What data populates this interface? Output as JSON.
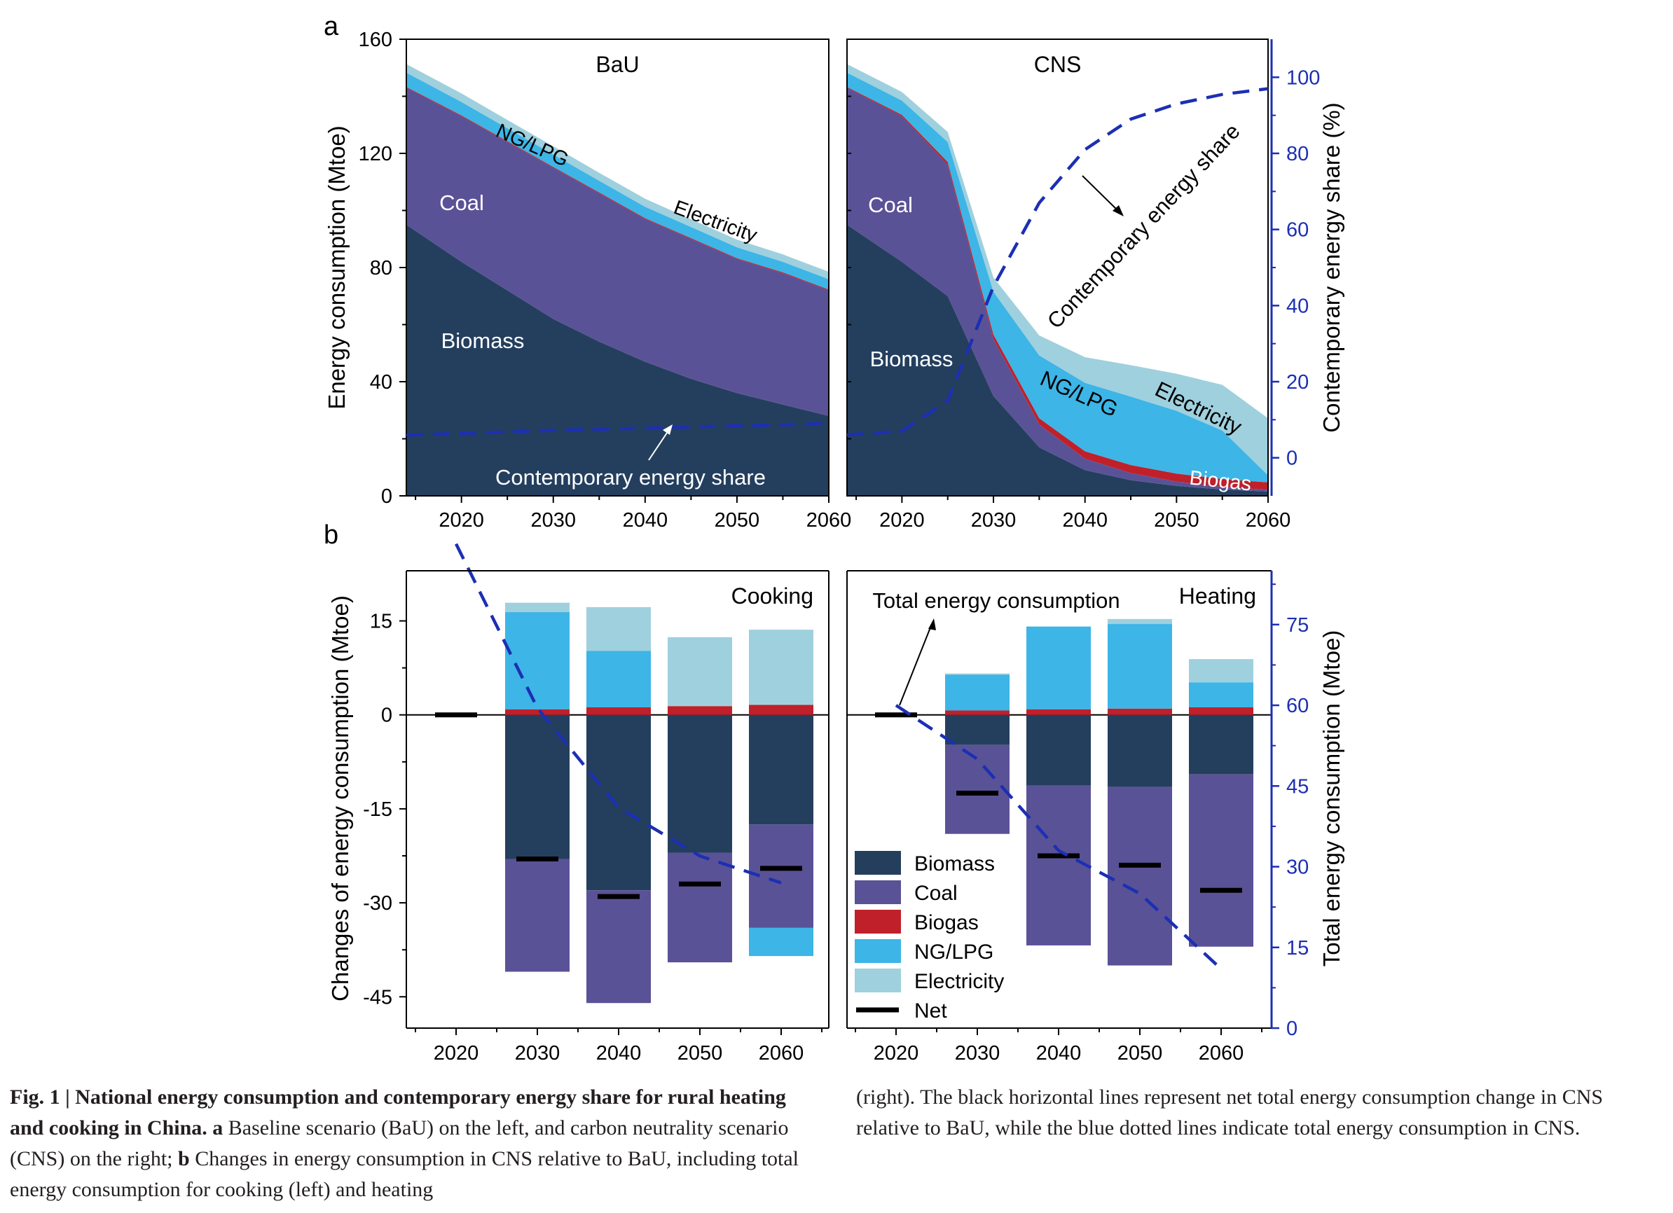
{
  "panel_labels": {
    "a": "a",
    "b": "b"
  },
  "chart_data": [
    {
      "type": "area",
      "title": "BaU",
      "ylabel": "Energy consumption (Mtoe)",
      "ylim": [
        0,
        160
      ],
      "yticks": [
        "0",
        "40",
        "80",
        "120",
        "160"
      ],
      "xlim": [
        2014,
        2060
      ],
      "xticks": [
        "2020",
        "2030",
        "2040",
        "2050",
        "2060"
      ],
      "x": [
        2014,
        2020,
        2025,
        2030,
        2035,
        2040,
        2045,
        2050,
        2055,
        2060
      ],
      "series": [
        {
          "name": "Biomass",
          "color": "#243f5e",
          "values": [
            95,
            82,
            72,
            62,
            54,
            47,
            41,
            36,
            32,
            28
          ]
        },
        {
          "name": "Coal",
          "color": "#5a5296",
          "values": [
            48,
            51,
            52,
            53,
            52,
            50,
            49,
            47,
            46,
            44
          ]
        },
        {
          "name": "Biogas",
          "color": "#c0202a",
          "values": [
            0.3,
            0.3,
            0.3,
            0.3,
            0.3,
            0.3,
            0.3,
            0.3,
            0.3,
            0.3
          ]
        },
        {
          "name": "NG/LPG",
          "color": "#3db5e6",
          "values": [
            5,
            4.7,
            4.5,
            4.3,
            4.1,
            4,
            3.9,
            3.8,
            3.7,
            3.6
          ]
        },
        {
          "name": "Electricity",
          "color": "#9fd0de",
          "values": [
            3,
            3,
            2.9,
            2.9,
            2.8,
            2.8,
            2.7,
            2.7,
            2.6,
            2.6
          ]
        }
      ],
      "area_labels": [
        "Coal",
        "Biomass",
        "NG/LPG",
        "Electricity"
      ],
      "share_series": {
        "name": "Contemporary energy share",
        "unit": "%",
        "values": [
          6,
          6.4,
          6.8,
          7.2,
          7.5,
          7.8,
          8.1,
          8.4,
          8.7,
          9
        ]
      },
      "annotation": "Contemporary energy share"
    },
    {
      "type": "area",
      "title": "CNS",
      "y2label": "Contemporary energy share (%)",
      "ylim": [
        0,
        160
      ],
      "y2lim": [
        -10,
        110
      ],
      "y2ticks": [
        "0",
        "20",
        "40",
        "60",
        "80",
        "100"
      ],
      "xlim": [
        2014,
        2060
      ],
      "xticks": [
        "2020",
        "2030",
        "2040",
        "2050",
        "2060"
      ],
      "x": [
        2014,
        2020,
        2025,
        2030,
        2035,
        2040,
        2045,
        2050,
        2055,
        2060
      ],
      "series": [
        {
          "name": "Biomass",
          "color": "#243f5e",
          "values": [
            95,
            82,
            70,
            35,
            17,
            9,
            5.5,
            3.5,
            2.2,
            1.5
          ]
        },
        {
          "name": "Coal",
          "color": "#5a5296",
          "values": [
            48,
            51,
            46,
            20,
            8,
            4,
            2.5,
            1.5,
            1,
            0.6
          ]
        },
        {
          "name": "Biogas",
          "color": "#c0202a",
          "values": [
            0.3,
            0.5,
            1,
            1.5,
            2.2,
            2.6,
            2.8,
            2.8,
            2.7,
            2.6
          ]
        },
        {
          "name": "NG/LPG",
          "color": "#3db5e6",
          "values": [
            5,
            5,
            7,
            15,
            22,
            24,
            24,
            22,
            17,
            2.5
          ]
        },
        {
          "name": "Electricity",
          "color": "#9fd0de",
          "values": [
            3,
            3,
            3.5,
            5,
            7,
            9,
            11,
            13,
            16,
            20
          ]
        }
      ],
      "area_labels": [
        "Coal",
        "Biomass",
        "NG/LPG",
        "Electricity",
        "Biogas"
      ],
      "share_series": {
        "name": "Contemporary energy share",
        "unit": "%",
        "values": [
          6,
          7,
          15,
          45,
          67,
          81,
          89,
          93,
          95.5,
          97
        ]
      },
      "annotation": "Contemporary energy share"
    },
    {
      "type": "bar",
      "title": "Cooking",
      "ylabel": "Changes of energy consumption (Mtoe)",
      "ylim": [
        -50,
        23
      ],
      "yticks": [
        "15",
        "0",
        "-15",
        "-30",
        "-45"
      ],
      "categories": [
        "2020",
        "2030",
        "2040",
        "2050",
        "2060"
      ],
      "series": [
        {
          "name": "Biomass",
          "color": "#243f5e",
          "values": [
            0,
            -23,
            -28,
            -22,
            -17.5
          ]
        },
        {
          "name": "Coal",
          "color": "#5a5296",
          "values": [
            0,
            -18,
            -18,
            -17.5,
            -16.5
          ]
        },
        {
          "name": "Biogas",
          "color": "#c0202a",
          "values": [
            0,
            0.9,
            1.2,
            1.4,
            1.6
          ]
        },
        {
          "name": "NG/LPG",
          "color": "#3db5e6",
          "values": [
            0,
            15.5,
            9,
            0,
            -4.5
          ]
        },
        {
          "name": "Electricity",
          "color": "#9fd0de",
          "values": [
            0,
            1.5,
            7,
            11,
            12
          ]
        }
      ],
      "net": [
        0,
        -23,
        -29,
        -27,
        -24.5
      ],
      "total_energy_consumption": [
        90,
        59.5,
        41,
        32,
        27
      ]
    },
    {
      "type": "bar",
      "title": "Heating",
      "y2label": "Total energy consumption (Mtoe)",
      "ylim": [
        -50,
        23
      ],
      "y2lim": [
        0,
        85
      ],
      "y2ticks": [
        "0",
        "15",
        "30",
        "45",
        "60",
        "75"
      ],
      "categories": [
        "2020",
        "2030",
        "2040",
        "2050",
        "2060"
      ],
      "series": [
        {
          "name": "Biomass",
          "color": "#243f5e",
          "values": [
            0,
            -4.8,
            -11.3,
            -11.5,
            -9.5
          ]
        },
        {
          "name": "Coal",
          "color": "#5a5296",
          "values": [
            0,
            -14.2,
            -25.5,
            -28.5,
            -27.5
          ]
        },
        {
          "name": "Biogas",
          "color": "#c0202a",
          "values": [
            0,
            0.7,
            0.9,
            1,
            1.2
          ]
        },
        {
          "name": "NG/LPG",
          "color": "#3db5e6",
          "values": [
            0,
            5.7,
            13.2,
            13.5,
            4
          ]
        },
        {
          "name": "Electricity",
          "color": "#9fd0de",
          "values": [
            0,
            0.2,
            0,
            0.8,
            3.7
          ]
        }
      ],
      "net": [
        0,
        -12.5,
        -22.5,
        -24,
        -28
      ],
      "total_energy_consumption": [
        60,
        50,
        33,
        25,
        11
      ],
      "annotation": "Total energy consumption"
    }
  ],
  "legend": [
    {
      "label": "Biomass",
      "color": "#243f5e"
    },
    {
      "label": "Coal",
      "color": "#5a5296"
    },
    {
      "label": "Biogas",
      "color": "#c0202a"
    },
    {
      "label": "NG/LPG",
      "color": "#3db5e6"
    },
    {
      "label": "Electricity",
      "color": "#9fd0de"
    },
    {
      "label": "Net",
      "color": "#000000"
    }
  ],
  "caption": {
    "left_bold": "Fig. 1 | National energy consumption and contemporary energy share for rural heating and cooking in China.",
    "left_b1": " a",
    "left_t1": " Baseline scenario (BaU) on the left, and carbon neutrality scenario (CNS) on the right;",
    "left_b2": " b",
    "left_t2": " Changes in energy consumption in CNS relative to BaU, including total energy consumption for cooking (left) and heating",
    "right": "(right). The black horizontal lines represent net total energy consumption change in CNS relative to BaU, while the blue dotted lines indicate total energy consumption in CNS."
  }
}
